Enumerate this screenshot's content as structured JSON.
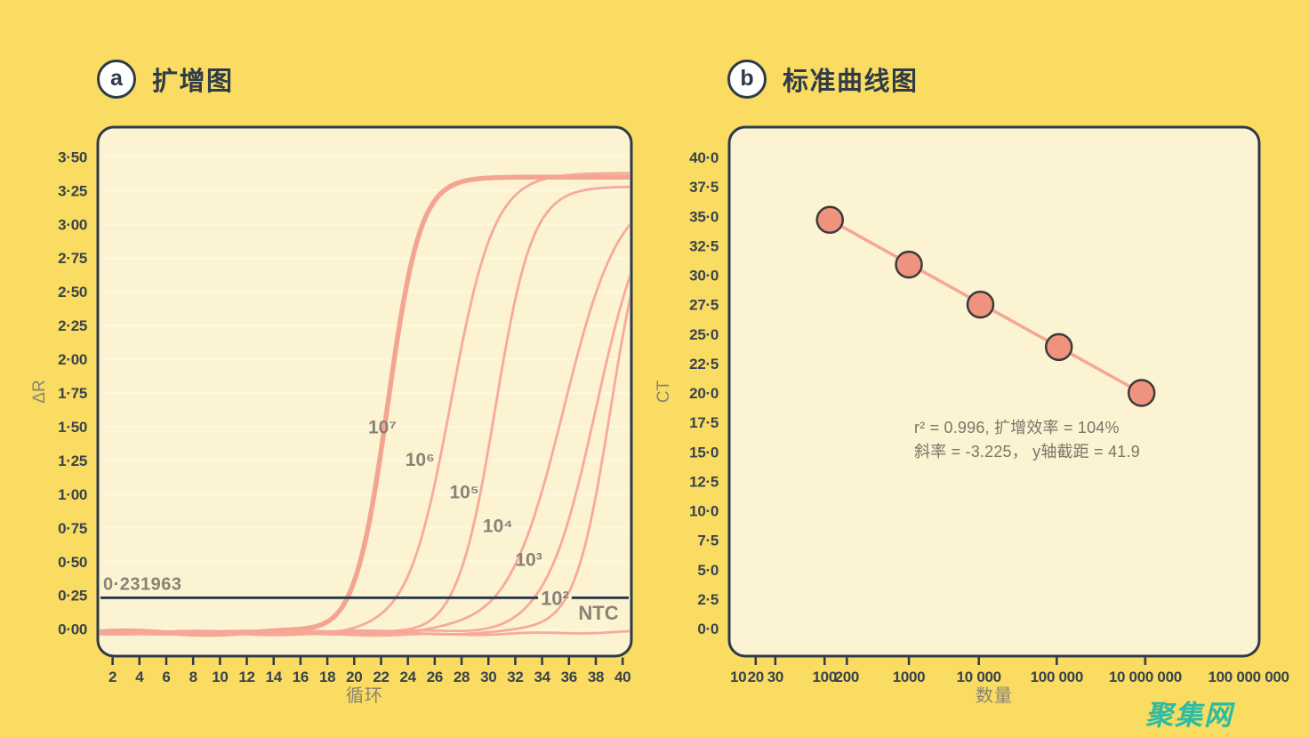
{
  "page": {
    "background": "#F9DC61"
  },
  "watermark": {
    "text": "聚集网",
    "color": "#2ABCA4"
  },
  "panels": {
    "a": {
      "badge": "a",
      "title": "扩增图"
    },
    "b": {
      "badge": "b",
      "title": "标准曲线图"
    }
  },
  "colors": {
    "navy": "#2E3B49",
    "title_text": "#2F3B49",
    "tick_text": "#3A434D",
    "gray_label": "#8A8275",
    "annotation": "#7B7568",
    "curve": "#F5A795",
    "curve_thick": "#F2A08E",
    "point_fill": "#F0937E",
    "point_stroke": "#3B3B3B",
    "panel_bg": "#FCF3D2",
    "grid": "rgba(255,252,240,0.55)"
  },
  "chart_data": [
    {
      "id": "amplification",
      "type": "line",
      "title": "扩增图",
      "xlabel": "循环",
      "ylabel": "ΔR",
      "xlim": [
        0.9,
        40.65
      ],
      "ylim": [
        -0.2,
        3.72
      ],
      "grid": "horizontal-subtle",
      "x_ticks": [
        2,
        4,
        6,
        8,
        10,
        12,
        14,
        16,
        18,
        20,
        22,
        24,
        26,
        28,
        30,
        32,
        34,
        36,
        38,
        40
      ],
      "y_ticks": [
        {
          "v": 3.5,
          "label": "3·50"
        },
        {
          "v": 3.25,
          "label": "3·25"
        },
        {
          "v": 3.0,
          "label": "3·00"
        },
        {
          "v": 2.75,
          "label": "2·75"
        },
        {
          "v": 2.5,
          "label": "2·50"
        },
        {
          "v": 2.25,
          "label": "2·25"
        },
        {
          "v": 2.0,
          "label": "2·00"
        },
        {
          "v": 1.75,
          "label": "1·75"
        },
        {
          "v": 1.5,
          "label": "1·50"
        },
        {
          "v": 1.25,
          "label": "1·25"
        },
        {
          "v": 1.0,
          "label": "1·00"
        },
        {
          "v": 0.75,
          "label": "0·75"
        },
        {
          "v": 0.5,
          "label": "0·50"
        },
        {
          "v": 0.25,
          "label": "0·25"
        },
        {
          "v": 0.0,
          "label": "0·00"
        }
      ],
      "threshold": {
        "value": 0.231963,
        "label": "0·231963",
        "inline_label": "10²",
        "gap_cycles": [
          33.7,
          36.2
        ]
      },
      "series": [
        {
          "name": "10⁷",
          "ct": 19.4,
          "mid": 22.5,
          "k": 0.83,
          "plateau": 3.37,
          "thick": true,
          "label_x": 22.1,
          "label_y": 1.45
        },
        {
          "name": "10⁶",
          "ct": 23.0,
          "mid": 27.2,
          "k": 0.62,
          "plateau": 3.4,
          "thick": false,
          "label_x": 24.9,
          "label_y": 1.21
        },
        {
          "name": "10⁵",
          "ct": 26.9,
          "mid": 30.5,
          "k": 0.72,
          "plateau": 3.3,
          "thick": false,
          "label_x": 28.2,
          "label_y": 0.97
        },
        {
          "name": "10⁴",
          "ct": 30.2,
          "mid": 35.6,
          "k": 0.48,
          "plateau": 3.3,
          "thick": false,
          "label_x": 30.7,
          "label_y": 0.72
        },
        {
          "name": "10³",
          "ct": 33.4,
          "mid": 38.0,
          "k": 0.54,
          "plateau": 3.3,
          "thick": false,
          "label_x": 33.0,
          "label_y": 0.47
        },
        {
          "name": "10²",
          "ct": 35.7,
          "mid": 39.1,
          "k": 0.75,
          "plateau": 3.3,
          "thick": false,
          "inline": true
        },
        {
          "name": "NTC",
          "flat": true,
          "base": -0.02,
          "label_x": 38.2,
          "label_y": 0.07
        }
      ]
    },
    {
      "id": "standard_curve",
      "type": "scatter",
      "title": "标准曲线图",
      "xlabel": "数量",
      "ylabel": "CT",
      "ylim": [
        -2.34,
        42.57
      ],
      "grid": "off",
      "x_scale": "log-stylized",
      "x_ticks": [
        {
          "label": "10",
          "f": 0.017,
          "tick": false
        },
        {
          "label": "20",
          "f": 0.05,
          "tick": true
        },
        {
          "label": "30",
          "f": 0.087,
          "tick": true
        },
        {
          "label": "100",
          "f": 0.18,
          "tick": true
        },
        {
          "label": "200",
          "f": 0.222,
          "tick": true
        },
        {
          "label": "1000",
          "f": 0.339,
          "tick": true
        },
        {
          "label": "10 000",
          "f": 0.471,
          "tick": true
        },
        {
          "label": "100 000",
          "f": 0.618,
          "tick": true
        },
        {
          "label": "10 000 000",
          "f": 0.785,
          "tick": true
        },
        {
          "label": "100 000 000",
          "f": 0.98,
          "tick": false
        }
      ],
      "y_ticks": [
        {
          "v": 40.0,
          "label": "40·0"
        },
        {
          "v": 37.5,
          "label": "37·5"
        },
        {
          "v": 35.0,
          "label": "35·0"
        },
        {
          "v": 32.5,
          "label": "32·5"
        },
        {
          "v": 30.0,
          "label": "30·0"
        },
        {
          "v": 27.5,
          "label": "27·5"
        },
        {
          "v": 25.0,
          "label": "25·0"
        },
        {
          "v": 22.5,
          "label": "22·5"
        },
        {
          "v": 20.0,
          "label": "20·0"
        },
        {
          "v": 17.5,
          "label": "17·5"
        },
        {
          "v": 15.0,
          "label": "15·0"
        },
        {
          "v": 12.5,
          "label": "12·5"
        },
        {
          "v": 10.0,
          "label": "10·0"
        },
        {
          "v": 7.5,
          "label": "7·5"
        },
        {
          "v": 5.0,
          "label": "5·0"
        },
        {
          "v": 2.5,
          "label": "2·5"
        },
        {
          "v": 0.0,
          "label": "0·0"
        }
      ],
      "points": [
        {
          "quantity": 150,
          "ct": 34.7,
          "f": 0.19
        },
        {
          "quantity": 1000,
          "ct": 30.9,
          "f": 0.339
        },
        {
          "quantity": 10000,
          "ct": 27.5,
          "f": 0.474
        },
        {
          "quantity": 100000,
          "ct": 23.9,
          "f": 0.622
        },
        {
          "quantity": 10000000,
          "ct": 20.0,
          "f": 0.778
        }
      ],
      "fit": {
        "r_squared": 0.996,
        "efficiency": "104%",
        "slope": -3.225,
        "y_intercept": 41.9
      },
      "annotation_lines": [
        "r² = 0.996, 扩增效率 = 104%",
        "斜率 = -3.225， y轴截距 = 41.9"
      ]
    }
  ]
}
